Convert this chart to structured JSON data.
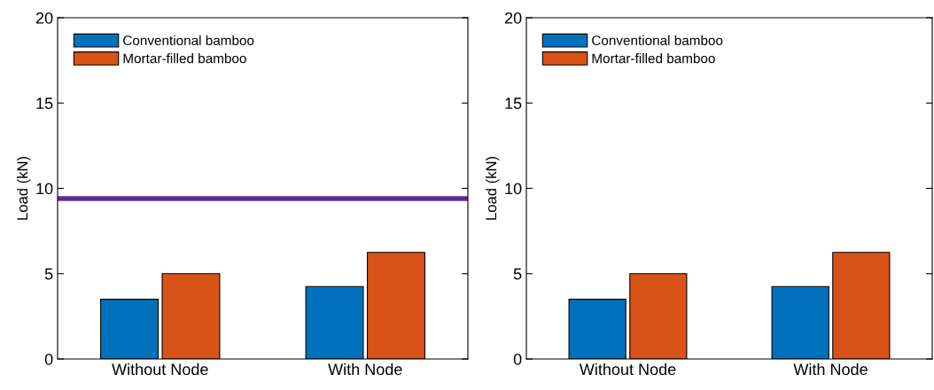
{
  "chart_data": [
    {
      "type": "bar",
      "ylabel": "Load (kN)",
      "categories": [
        "Without Node",
        "With Node"
      ],
      "series": [
        {
          "name": "Conventional bamboo",
          "color": "#0072bd",
          "values": [
            3.5,
            4.25
          ]
        },
        {
          "name": "Mortar-filled bamboo",
          "color": "#d95319",
          "values": [
            5.0,
            6.25
          ]
        }
      ],
      "ylim": [
        0,
        20
      ],
      "yticks": [
        0,
        5,
        10,
        15,
        20
      ],
      "legend": "top left",
      "grid": false,
      "ref_lines": [
        {
          "axis": "y",
          "value": 9.4,
          "color": "#5b2d90"
        }
      ]
    },
    {
      "type": "bar",
      "ylabel": "Load (kN)",
      "categories": [
        "Without Node",
        "With Node"
      ],
      "series": [
        {
          "name": "Conventional bamboo",
          "color": "#0072bd",
          "values": [
            3.5,
            4.25
          ]
        },
        {
          "name": "Mortar-filled bamboo",
          "color": "#d95319",
          "values": [
            5.0,
            6.25
          ]
        }
      ],
      "ylim": [
        0,
        20
      ],
      "yticks": [
        0,
        5,
        10,
        15,
        20
      ],
      "legend": "top left",
      "grid": false
    }
  ]
}
